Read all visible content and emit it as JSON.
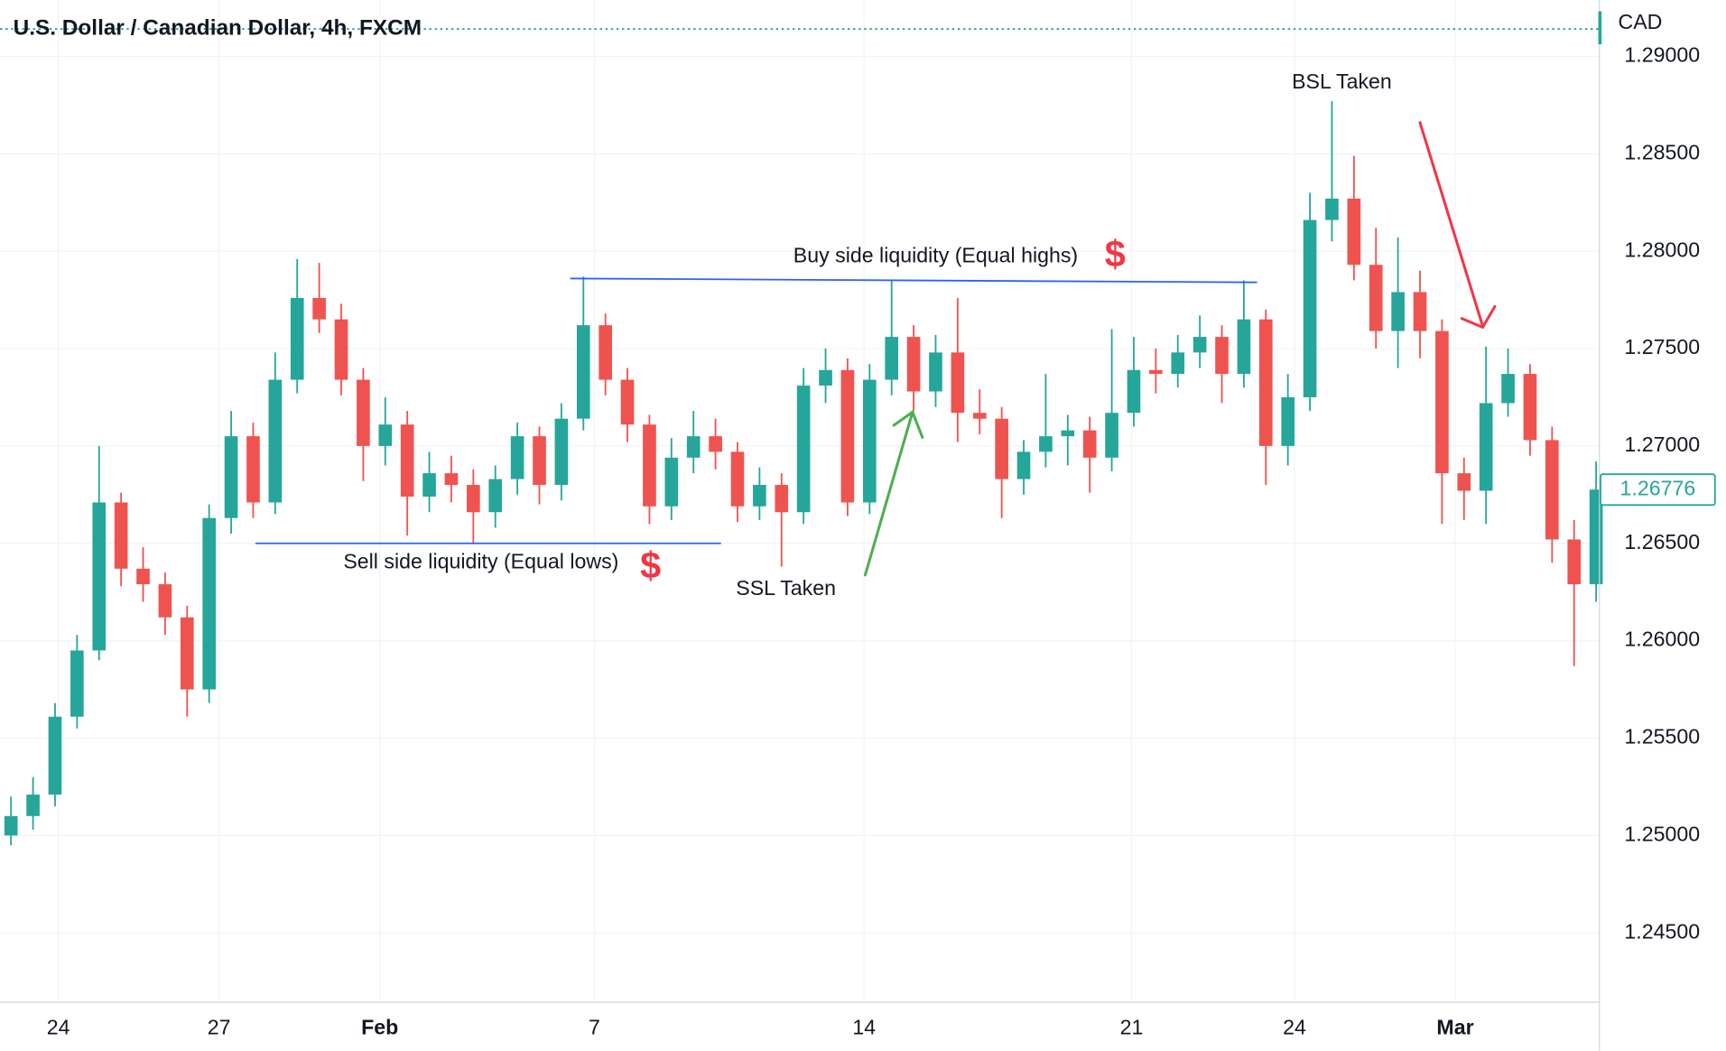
{
  "chart_data": {
    "type": "candlestick",
    "title": "U.S. Dollar / Canadian Dollar, 4h, FXCM",
    "currency": "CAD",
    "up_color": "#26a69a",
    "down_color": "#ef5350",
    "xlim": [
      -0.5,
      72.15
    ],
    "xticks": [
      {
        "value": 2.15,
        "label": "24"
      },
      {
        "value": 9.45,
        "label": "27"
      },
      {
        "value": 16.75,
        "label": "Feb"
      },
      {
        "value": 26.5,
        "label": "7"
      },
      {
        "value": 38.75,
        "label": "14"
      },
      {
        "value": 50.9,
        "label": "21"
      },
      {
        "value": 58.3,
        "label": "24"
      },
      {
        "value": 65.6,
        "label": "Mar"
      }
    ],
    "ylim": [
      1.24144,
      1.29288
    ],
    "yticks": [
      {
        "value": 1.245,
        "label": "1.24500"
      },
      {
        "value": 1.25,
        "label": "1.25000"
      },
      {
        "value": 1.255,
        "label": "1.25500"
      },
      {
        "value": 1.26,
        "label": "1.26000"
      },
      {
        "value": 1.265,
        "label": "1.26500"
      },
      {
        "value": 1.27,
        "label": "1.27000"
      },
      {
        "value": 1.275,
        "label": "1.27500"
      },
      {
        "value": 1.28,
        "label": "1.28000"
      },
      {
        "value": 1.285,
        "label": "1.28500"
      },
      {
        "value": 1.29,
        "label": "1.29000"
      }
    ],
    "grid": true,
    "open": [
      1.25,
      1.251,
      1.2521,
      1.2561,
      1.2595,
      1.2671,
      1.2637,
      1.2629,
      1.2612,
      1.2575,
      1.2663,
      1.2705,
      1.2671,
      1.2734,
      1.2776,
      1.2765,
      1.2734,
      1.27,
      1.2711,
      1.2674,
      1.2686,
      1.268,
      1.2666,
      1.2683,
      1.2705,
      1.268,
      1.2714,
      1.2762,
      1.2734,
      1.2711,
      1.2669,
      1.2694,
      1.2705,
      1.2697,
      1.2669,
      1.268,
      1.2666,
      1.2731,
      1.2739,
      1.2671,
      1.2734,
      1.2756,
      1.2728,
      1.2748,
      1.2717,
      1.2714,
      1.2683,
      1.2697,
      1.2705,
      1.2708,
      1.2694,
      1.2717,
      1.2739,
      1.2737,
      1.2748,
      1.2756,
      1.2737,
      1.2765,
      1.27,
      1.2725,
      1.2816,
      1.2827,
      1.2793,
      1.2759,
      1.2779,
      1.2759,
      1.2686,
      1.2677,
      1.2722,
      1.2737,
      1.2703,
      1.2652,
      1.2629
    ],
    "high": [
      1.252,
      1.253,
      1.2568,
      1.2603,
      1.27,
      1.2676,
      1.2648,
      1.2635,
      1.2618,
      1.267,
      1.2718,
      1.2712,
      1.2748,
      1.2796,
      1.2794,
      1.2773,
      1.274,
      1.2725,
      1.2718,
      1.2697,
      1.2695,
      1.2688,
      1.269,
      1.2712,
      1.271,
      1.2722,
      1.2787,
      1.2768,
      1.274,
      1.2716,
      1.2704,
      1.2718,
      1.2714,
      1.2702,
      1.2689,
      1.2686,
      1.274,
      1.275,
      1.2745,
      1.2742,
      1.2785,
      1.2762,
      1.2757,
      1.2776,
      1.2729,
      1.272,
      1.2703,
      1.2737,
      1.2716,
      1.2715,
      1.276,
      1.2756,
      1.275,
      1.2757,
      1.2767,
      1.2762,
      1.2785,
      1.277,
      1.2737,
      1.283,
      1.2877,
      1.2849,
      1.2812,
      1.2807,
      1.279,
      1.2765,
      1.2694,
      1.2751,
      1.275,
      1.2742,
      1.271,
      1.2662,
      1.2692
    ],
    "low": [
      1.2495,
      1.2503,
      1.2515,
      1.2555,
      1.259,
      1.2628,
      1.262,
      1.2603,
      1.2561,
      1.2568,
      1.2655,
      1.2663,
      1.2665,
      1.2727,
      1.2758,
      1.2726,
      1.2682,
      1.269,
      1.2654,
      1.2666,
      1.2671,
      1.265,
      1.2658,
      1.2675,
      1.267,
      1.2672,
      1.2708,
      1.2726,
      1.2702,
      1.266,
      1.2662,
      1.2686,
      1.2688,
      1.2661,
      1.2662,
      1.2638,
      1.266,
      1.2722,
      1.2664,
      1.2665,
      1.2726,
      1.2718,
      1.272,
      1.2702,
      1.2706,
      1.2663,
      1.2675,
      1.2689,
      1.269,
      1.2676,
      1.2687,
      1.271,
      1.2727,
      1.273,
      1.274,
      1.2722,
      1.273,
      1.268,
      1.269,
      1.2718,
      1.2805,
      1.2785,
      1.275,
      1.274,
      1.2745,
      1.266,
      1.2662,
      1.266,
      1.2715,
      1.2695,
      1.264,
      1.2587,
      1.262
    ],
    "close": [
      1.251,
      1.2521,
      1.2561,
      1.2595,
      1.2671,
      1.2637,
      1.2629,
      1.2612,
      1.2575,
      1.2663,
      1.2705,
      1.2671,
      1.2734,
      1.2776,
      1.2765,
      1.2734,
      1.27,
      1.2711,
      1.2674,
      1.2686,
      1.268,
      1.2666,
      1.2683,
      1.2705,
      1.268,
      1.2714,
      1.2762,
      1.2734,
      1.2711,
      1.2669,
      1.2694,
      1.2705,
      1.2697,
      1.2669,
      1.268,
      1.2666,
      1.2731,
      1.2739,
      1.2671,
      1.2734,
      1.2756,
      1.2728,
      1.2748,
      1.2717,
      1.2714,
      1.2683,
      1.2697,
      1.2705,
      1.2708,
      1.2694,
      1.2717,
      1.2739,
      1.2737,
      1.2748,
      1.2756,
      1.2737,
      1.2765,
      1.27,
      1.2725,
      1.2816,
      1.2827,
      1.2793,
      1.2759,
      1.2779,
      1.2759,
      1.2686,
      1.2677,
      1.2722,
      1.2737,
      1.2703,
      1.2652,
      1.2629,
      1.26776
    ],
    "levels": [
      {
        "name": "buy-side",
        "x": [
          25.4,
          56.6
        ],
        "y": [
          1.2786,
          1.2784
        ]
      },
      {
        "name": "sell-side",
        "x": [
          11.1,
          32.25
        ],
        "y": [
          1.265,
          1.265
        ]
      }
    ],
    "annotations": [
      "Buy side liquidity (Equal highs)",
      "$",
      "Sell side liquidity (Equal lows)",
      "$",
      "SSL Taken",
      "BSL Taken"
    ]
  }
}
